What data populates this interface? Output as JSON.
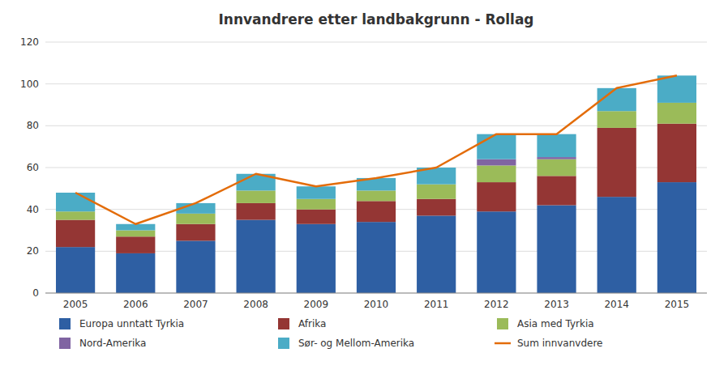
{
  "chart_data": {
    "type": "bar",
    "stacked": true,
    "title": "Innvandrere  etter landbakgrunn - Rollag",
    "categories": [
      2005,
      2006,
      2007,
      2008,
      2009,
      2010,
      2011,
      2012,
      2013,
      2014,
      2015
    ],
    "series": [
      {
        "name": "Europa unntatt Tyrkia",
        "color": "#2E5FA3",
        "values": [
          22,
          19,
          25,
          35,
          33,
          34,
          37,
          39,
          42,
          46,
          53
        ]
      },
      {
        "name": "Afrika",
        "color": "#943634",
        "values": [
          13,
          8,
          8,
          8,
          7,
          10,
          8,
          14,
          14,
          33,
          28
        ]
      },
      {
        "name": "Asia med Tyrkia",
        "color": "#9BBB59",
        "values": [
          4,
          3,
          5,
          6,
          5,
          5,
          7,
          8,
          8,
          8,
          10
        ]
      },
      {
        "name": "Nord-Amerika",
        "color": "#8064A2",
        "values": [
          0,
          0,
          0,
          0,
          0,
          0,
          0,
          3,
          1,
          0,
          0
        ]
      },
      {
        "name": "Sør- og Mellom-Amerika",
        "color": "#4BACC6",
        "values": [
          9,
          3,
          5,
          8,
          6,
          6,
          8,
          12,
          11,
          11,
          13
        ]
      },
      {
        "name": "Sum innvanvdere",
        "type": "line",
        "color": "#E36C09",
        "values": [
          48,
          33,
          43,
          57,
          51,
          55,
          60,
          76,
          76,
          98,
          104
        ]
      }
    ],
    "ylim": [
      0,
      120
    ],
    "yticks": [
      0,
      20,
      40,
      60,
      80,
      100,
      120
    ],
    "grid": true,
    "legend": "bottom"
  }
}
